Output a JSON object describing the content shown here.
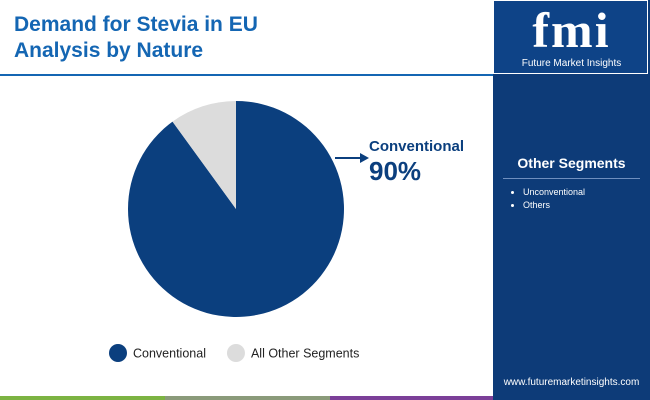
{
  "chart_data": {
    "type": "pie",
    "title": "Demand for Stevia in EU Analysis by Nature",
    "categories": [
      "Conventional",
      "All Other Segments"
    ],
    "values": [
      90,
      10
    ],
    "value_labels": [
      "90%",
      null
    ],
    "colors": [
      "#0b3f7e",
      "#dcdcdc"
    ],
    "legend": "bottom"
  },
  "logo": {
    "mark": "fmi",
    "name": "Future Market Insights"
  },
  "sidebar": {
    "title": "Other Segments",
    "items": [
      "Unconventional",
      "Others"
    ],
    "url": "www.futuremarketinsights.com"
  }
}
